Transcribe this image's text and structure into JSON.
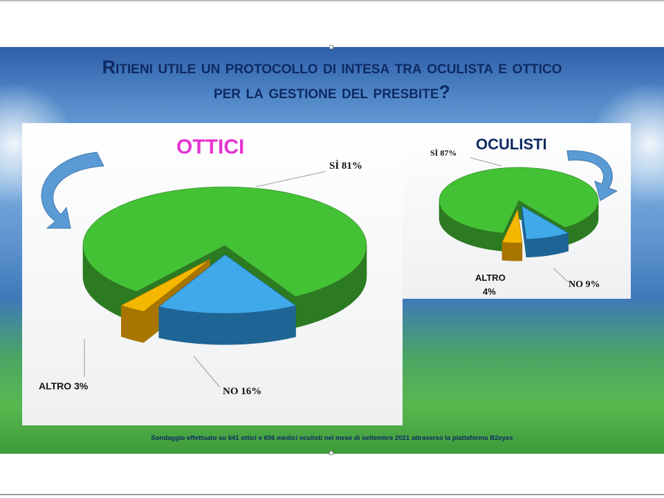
{
  "title_line1": "Ritieni utile un protocollo di intesa tra oculista e ottico",
  "title_line2": "per la gestione del presbite?",
  "ottici": {
    "heading": "OTTICI",
    "labels": {
      "si": "SÌ 81%",
      "no": "NO 16%",
      "altro": "ALTRO 3%"
    }
  },
  "oculisti": {
    "heading": "OCULISTI",
    "labels": {
      "si": "SÌ 87%",
      "no": "NO 9%",
      "altro_1": "ALTRO",
      "altro_2": "4%"
    }
  },
  "footer": "Sondaggio effettuato su 641 ottici e 656 medici oculisti nel mese di settembre 2021 attraverso la piattaforma B2eyes",
  "chart_data": [
    {
      "type": "pie",
      "title": "OTTICI",
      "categories": [
        "SÌ",
        "NO",
        "ALTRO"
      ],
      "values": [
        81,
        16,
        3
      ],
      "colors": [
        "#44c236",
        "#3fa9ea",
        "#f5b800"
      ]
    },
    {
      "type": "pie",
      "title": "OCULISTI",
      "categories": [
        "SÌ",
        "NO",
        "ALTRO"
      ],
      "values": [
        87,
        9,
        4
      ],
      "colors": [
        "#44c236",
        "#3fa9ea",
        "#f5b800"
      ]
    }
  ]
}
